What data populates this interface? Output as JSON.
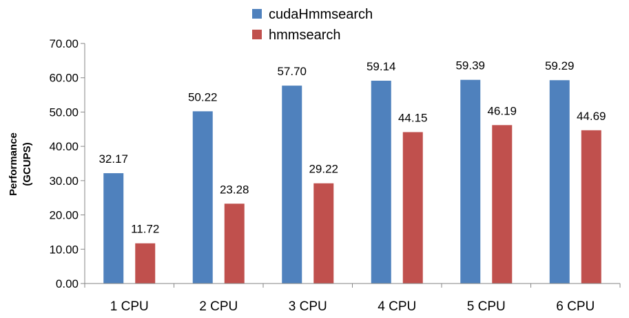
{
  "chart_data": {
    "type": "bar",
    "title": "",
    "xlabel": "",
    "ylabel_lines": [
      "Performance",
      "(GCUPS)"
    ],
    "categories": [
      "1 CPU",
      "2 CPU",
      "3 CPU",
      "4 CPU",
      "5 CPU",
      "6 CPU"
    ],
    "series": [
      {
        "name": "cudaHmmsearch",
        "color": "#4F81BD",
        "values": [
          32.17,
          50.22,
          57.7,
          59.14,
          59.39,
          59.29
        ],
        "labels": [
          "32.17",
          "50.22",
          "57.70",
          "59.14",
          "59.39",
          "59.29"
        ]
      },
      {
        "name": "hmmsearch",
        "color": "#C0504D",
        "values": [
          11.72,
          23.28,
          29.22,
          44.15,
          46.19,
          44.69
        ],
        "labels": [
          "11.72",
          "23.28",
          "29.22",
          "44.15",
          "46.19",
          "44.69"
        ]
      }
    ],
    "ylim": [
      0,
      70
    ],
    "yticks": [
      0,
      10,
      20,
      30,
      40,
      50,
      60,
      70
    ],
    "ytick_labels": [
      "0.00",
      "10.00",
      "20.00",
      "30.00",
      "40.00",
      "50.00",
      "60.00",
      "70.00"
    ],
    "grid": false,
    "legend_position": "top-center"
  }
}
